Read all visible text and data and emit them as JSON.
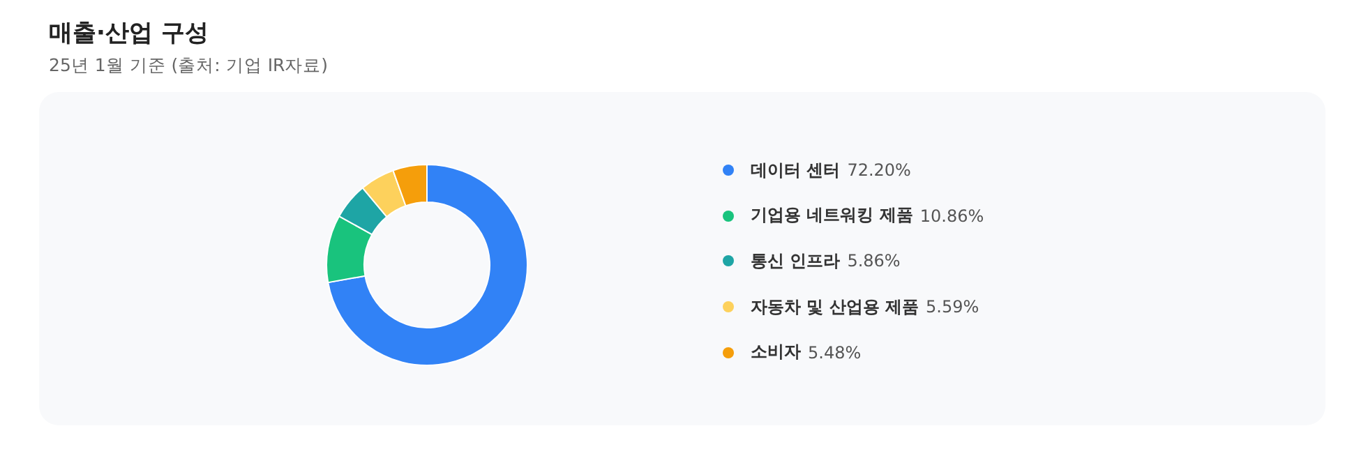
{
  "chart_data": {
    "type": "donut",
    "title": "매출·산업 구성",
    "subtitle": "25년 1월 기준 (출처: 기업 IR자료)",
    "categories": [
      "데이터 센터",
      "기업용 네트워킹 제품",
      "통신 인프라",
      "자동차 및 산업용 제품",
      "소비자"
    ],
    "values": [
      72.2,
      10.86,
      5.86,
      5.59,
      5.48
    ],
    "value_labels": [
      "72.20%",
      "10.86%",
      "5.86%",
      "5.59%",
      "5.48%"
    ],
    "colors": [
      "#3182f6",
      "#19c37d",
      "#1ea5a5",
      "#fdd15c",
      "#f59e0b"
    ],
    "legend": "right"
  }
}
